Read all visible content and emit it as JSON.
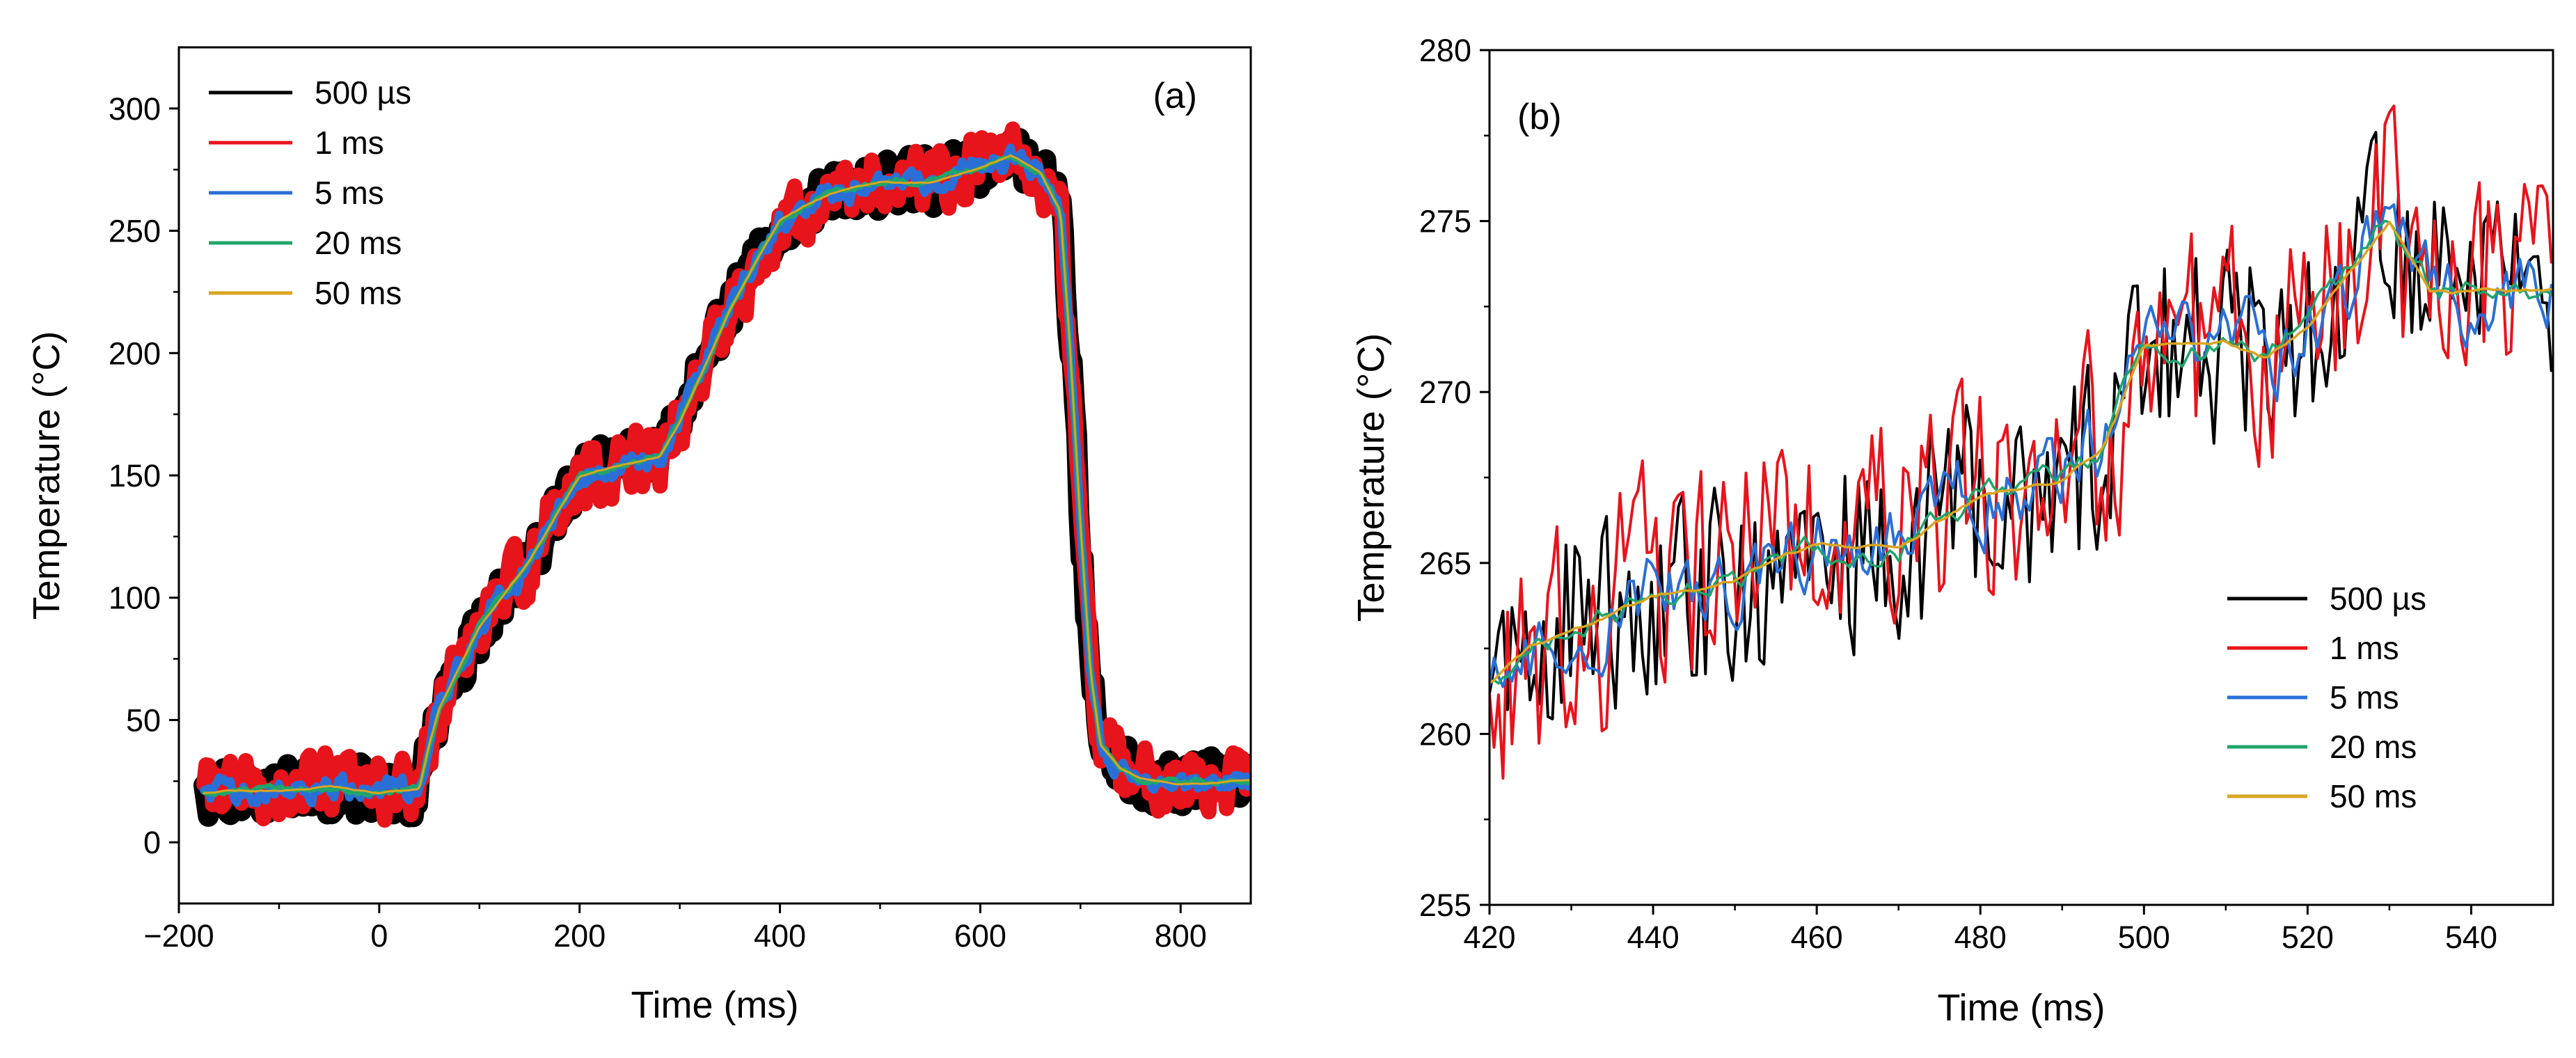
{
  "chart_data": [
    {
      "type": "line",
      "panel_label": "(a)",
      "xlabel": "Time (ms)",
      "ylabel": "Temperature (°C)",
      "xlim": [
        -200,
        870
      ],
      "ylim": [
        -25,
        325
      ],
      "xticks": [
        -200,
        0,
        200,
        400,
        600,
        800
      ],
      "yticks": [
        0,
        50,
        100,
        150,
        200,
        250,
        300
      ],
      "x_tick_labels": [
        "−200",
        "0",
        "200",
        "400",
        "600",
        "800"
      ],
      "y_tick_labels": [
        "0",
        "50",
        "100",
        "150",
        "200",
        "250",
        "300"
      ],
      "legend_position": "top-left",
      "series": [
        {
          "name": "500 µs",
          "color": "#000000",
          "noise_band": 12
        },
        {
          "name": "1 ms",
          "color": "#e8141b",
          "noise_band": 9
        },
        {
          "name": "5 ms",
          "color": "#2a6fd6",
          "noise_band": 5
        },
        {
          "name": "20 ms",
          "color": "#1fa56b",
          "noise_band": 2.5
        },
        {
          "name": "50 ms",
          "color": "#d9a520",
          "noise_band": 1.2
        }
      ],
      "trend": {
        "x": [
          -175,
          -150,
          -100,
          -50,
          0,
          40,
          50,
          60,
          100,
          150,
          200,
          250,
          280,
          300,
          350,
          400,
          450,
          500,
          550,
          600,
          630,
          660,
          680,
          690,
          700,
          710,
          720,
          740,
          760,
          800,
          850,
          870
        ],
        "y": [
          20,
          21,
          21,
          23,
          20,
          22,
          40,
          55,
          88,
          115,
          150,
          155,
          158,
          172,
          218,
          255,
          265,
          270,
          270,
          276,
          281,
          274,
          258,
          200,
          130,
          70,
          40,
          30,
          26,
          24,
          25,
          25
        ]
      }
    },
    {
      "type": "line",
      "panel_label": "(b)",
      "xlabel": "Time (ms)",
      "ylabel": "Temperature (°C)",
      "xlim": [
        420,
        550
      ],
      "ylim": [
        255,
        280
      ],
      "xticks": [
        420,
        440,
        460,
        480,
        500,
        520,
        540
      ],
      "yticks": [
        255,
        260,
        265,
        270,
        275,
        280
      ],
      "x_tick_labels": [
        "420",
        "440",
        "460",
        "480",
        "500",
        "520",
        "540"
      ],
      "y_tick_labels": [
        "255",
        "260",
        "265",
        "270",
        "275",
        "280"
      ],
      "legend_position": "bottom-right",
      "series": [
        {
          "name": "500 µs",
          "color": "#000000",
          "noise_band": 3.4
        },
        {
          "name": "1 ms",
          "color": "#e8141b",
          "noise_band": 2.5
        },
        {
          "name": "5 ms",
          "color": "#2a6fd6",
          "noise_band": 1.4
        },
        {
          "name": "20 ms",
          "color": "#1fa56b",
          "noise_band": 0.8
        },
        {
          "name": "50 ms",
          "color": "#d9a520",
          "noise_band": 0.35
        }
      ],
      "trend": {
        "x": [
          420,
          425,
          430,
          440,
          450,
          460,
          470,
          480,
          490,
          495,
          500,
          505,
          510,
          515,
          520,
          525,
          530,
          535,
          540,
          545,
          550
        ],
        "y": [
          261.5,
          262.5,
          263,
          264,
          264.5,
          265.5,
          265.5,
          267,
          267.5,
          268.5,
          271.5,
          271.5,
          271.5,
          271,
          272,
          273.5,
          275,
          273,
          273,
          273,
          273
        ]
      }
    }
  ]
}
